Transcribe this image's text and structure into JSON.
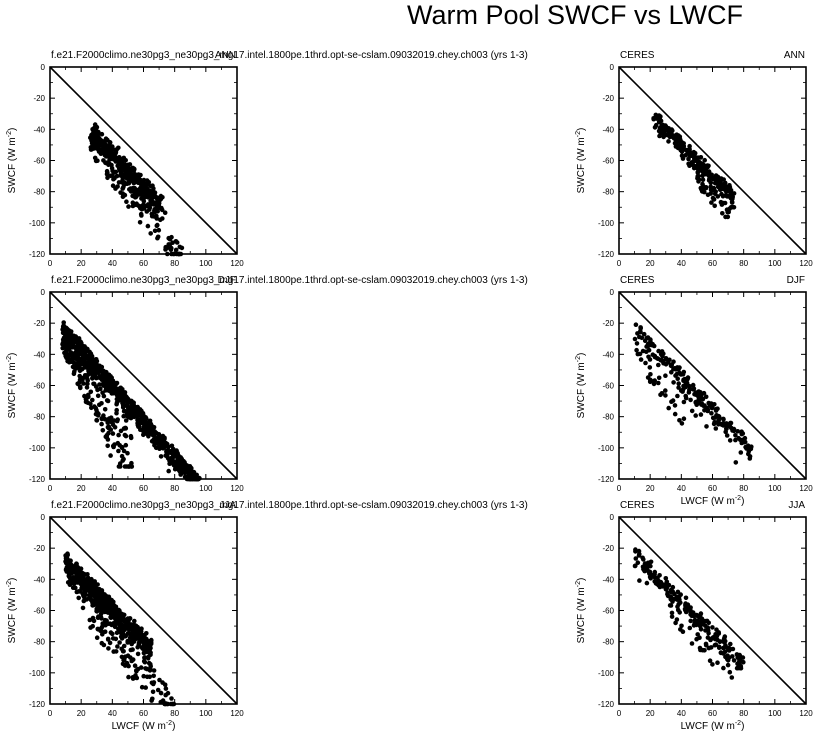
{
  "title": "Warm Pool SWCF vs LWCF",
  "axes": {
    "xlabel": "LWCF (W m",
    "ylabel": "SWCF (W m",
    "unit_superscript": "-2",
    "unit_close": ")",
    "xlim": [
      0,
      120
    ],
    "ylim": [
      -120,
      0
    ],
    "xticks": [
      0,
      20,
      40,
      60,
      80,
      100,
      120
    ],
    "yticks": [
      0,
      -20,
      -40,
      -60,
      -80,
      -100,
      -120
    ],
    "reference_line": "1:1 (SWCF = -LWCF)"
  },
  "chart_data": [
    {
      "type": "scatter",
      "source": "f.e21.F2000climo.ne30pg3_ne30pg3_mg17.intel.1800pe.1thrd.opt-se-cslam.09032019.chey.ch003 (yrs 1-3)",
      "season": "ANN",
      "x_range": [
        25,
        88
      ],
      "y_range": [
        -121,
        -36
      ]
    },
    {
      "type": "scatter",
      "source": "CERES",
      "season": "ANN",
      "x_range": [
        22,
        75
      ],
      "y_range": [
        -90,
        -28
      ]
    },
    {
      "type": "scatter",
      "source": "f.e21.F2000climo.ne30pg3_ne30pg3_mg17.intel.1800pe.1thrd.opt-se-cslam.09032019.chey.ch003 (yrs 1-3)",
      "season": "DJF",
      "x_range": [
        7,
        98
      ],
      "y_range": [
        -122,
        -21
      ]
    },
    {
      "type": "scatter",
      "source": "CERES",
      "season": "DJF",
      "x_range": [
        10,
        92
      ],
      "y_range": [
        -112,
        -17
      ]
    },
    {
      "type": "scatter",
      "source": "f.e21.F2000climo.ne30pg3_ne30pg3_mg17.intel.1800pe.1thrd.opt-se-cslam.09032019.chey.ch003 (yrs 1-3)",
      "season": "JJA",
      "x_range": [
        8,
        88
      ],
      "y_range": [
        -122,
        -22
      ]
    },
    {
      "type": "scatter",
      "source": "CERES",
      "season": "JJA",
      "x_range": [
        10,
        82
      ],
      "y_range": [
        -97,
        -18
      ]
    }
  ]
}
